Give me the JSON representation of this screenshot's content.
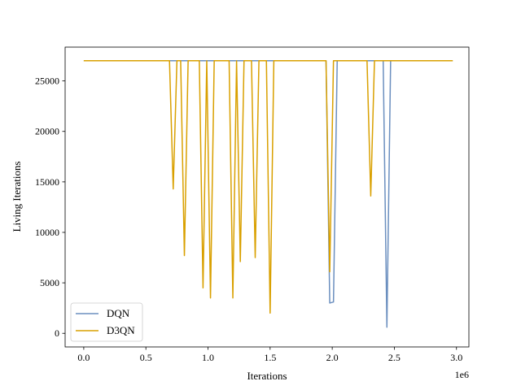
{
  "chart_data": {
    "type": "line",
    "xlabel": "Iterations",
    "ylabel": "Living Iterations",
    "x_offset_label": "1e6",
    "xlim": [
      -0.15,
      3.1
    ],
    "ylim": [
      -1350,
      28350
    ],
    "x_ticks": [
      0.0,
      0.5,
      1.0,
      1.5,
      2.0,
      2.5,
      3.0
    ],
    "x_tick_labels": [
      "0.0",
      "0.5",
      "1.0",
      "1.5",
      "2.0",
      "2.5",
      "3.0"
    ],
    "y_ticks": [
      0,
      5000,
      10000,
      15000,
      20000,
      25000
    ],
    "y_tick_labels": [
      "0",
      "5000",
      "10000",
      "15000",
      "20000",
      "25000"
    ],
    "legend_position": "lower-left",
    "series": [
      {
        "name": "DQN",
        "color": "#6b8fbf",
        "points": [
          [
            0.0,
            27000
          ],
          [
            1.95,
            27000
          ],
          [
            1.98,
            3000
          ],
          [
            2.01,
            3100
          ],
          [
            2.04,
            27000
          ],
          [
            2.41,
            27000
          ],
          [
            2.44,
            600
          ],
          [
            2.47,
            27000
          ],
          [
            2.97,
            27000
          ]
        ]
      },
      {
        "name": "D3QN",
        "color": "#d9a000",
        "points": [
          [
            0.0,
            27000
          ],
          [
            0.69,
            27000
          ],
          [
            0.72,
            14300
          ],
          [
            0.75,
            27000
          ],
          [
            0.78,
            27000
          ],
          [
            0.81,
            7700
          ],
          [
            0.84,
            27000
          ],
          [
            0.93,
            27000
          ],
          [
            0.96,
            4500
          ],
          [
            0.99,
            27000
          ],
          [
            1.02,
            3500
          ],
          [
            1.05,
            27000
          ],
          [
            1.17,
            27000
          ],
          [
            1.2,
            3500
          ],
          [
            1.23,
            27000
          ],
          [
            1.26,
            7100
          ],
          [
            1.29,
            27000
          ],
          [
            1.35,
            27000
          ],
          [
            1.38,
            7500
          ],
          [
            1.41,
            27000
          ],
          [
            1.47,
            27000
          ],
          [
            1.5,
            2000
          ],
          [
            1.53,
            27000
          ],
          [
            1.95,
            27000
          ],
          [
            1.98,
            6100
          ],
          [
            2.01,
            27000
          ],
          [
            2.28,
            27000
          ],
          [
            2.31,
            13600
          ],
          [
            2.34,
            27000
          ],
          [
            2.97,
            27000
          ]
        ]
      }
    ]
  }
}
